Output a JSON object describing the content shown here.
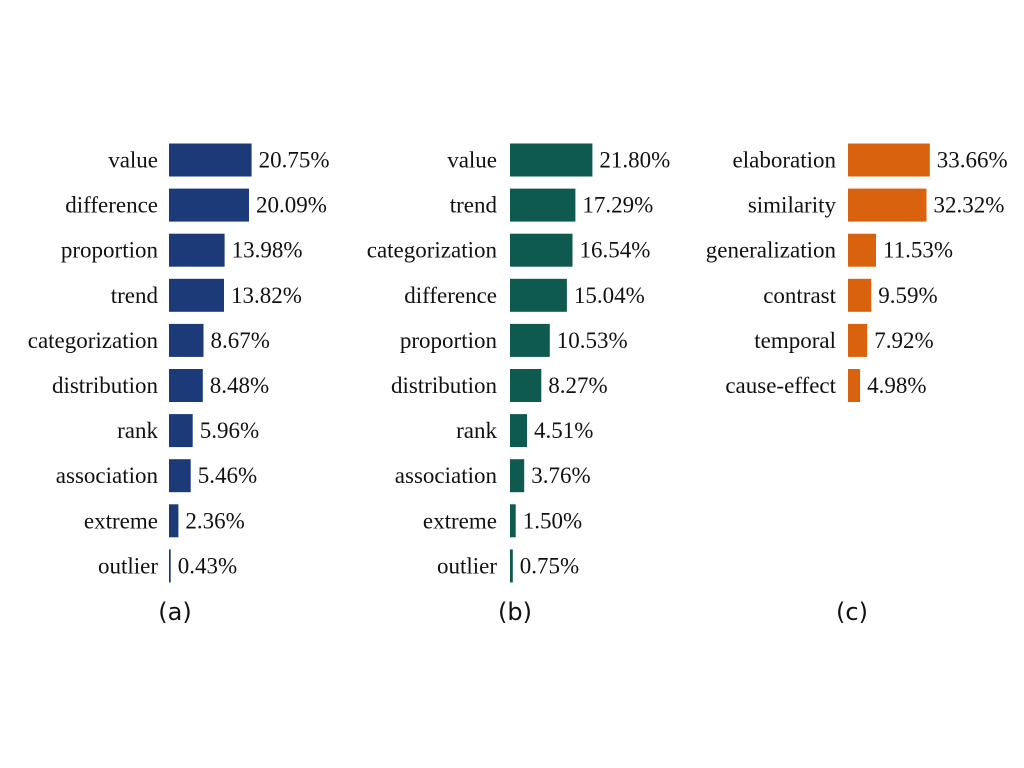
{
  "chart_data": [
    {
      "type": "bar",
      "orientation": "horizontal",
      "panel_label": "(a)",
      "color": "#1c3a78",
      "categories": [
        "value",
        "difference",
        "proportion",
        "trend",
        "categorization",
        "distribution",
        "rank",
        "association",
        "extreme",
        "outlier"
      ],
      "values": [
        20.75,
        20.09,
        13.98,
        13.82,
        8.67,
        8.48,
        5.96,
        5.46,
        2.36,
        0.43
      ],
      "value_labels": [
        "20.75%",
        "20.09%",
        "13.98%",
        "13.82%",
        "8.67%",
        "8.48%",
        "5.96%",
        "5.46%",
        "2.36%",
        "0.43%"
      ]
    },
    {
      "type": "bar",
      "orientation": "horizontal",
      "panel_label": "(b)",
      "color": "#0e5a4e",
      "categories": [
        "value",
        "trend",
        "categorization",
        "difference",
        "proportion",
        "distribution",
        "rank",
        "association",
        "extreme",
        "outlier"
      ],
      "values": [
        21.8,
        17.29,
        16.54,
        15.04,
        10.53,
        8.27,
        4.51,
        3.76,
        1.5,
        0.75
      ],
      "value_labels": [
        "21.80%",
        "17.29%",
        "16.54%",
        "15.04%",
        "10.53%",
        "8.27%",
        "4.51%",
        "3.76%",
        "1.50%",
        "0.75%"
      ]
    },
    {
      "type": "bar",
      "orientation": "horizontal",
      "panel_label": "(c)",
      "color": "#d9620f",
      "categories": [
        "elaboration",
        "similarity",
        "generalization",
        "contrast",
        "temporal",
        "cause-effect"
      ],
      "values": [
        33.66,
        32.32,
        11.53,
        9.59,
        7.92,
        4.98
      ],
      "value_labels": [
        "33.66%",
        "32.32%",
        "11.53%",
        "9.59%",
        "7.92%",
        "4.98%"
      ]
    }
  ]
}
